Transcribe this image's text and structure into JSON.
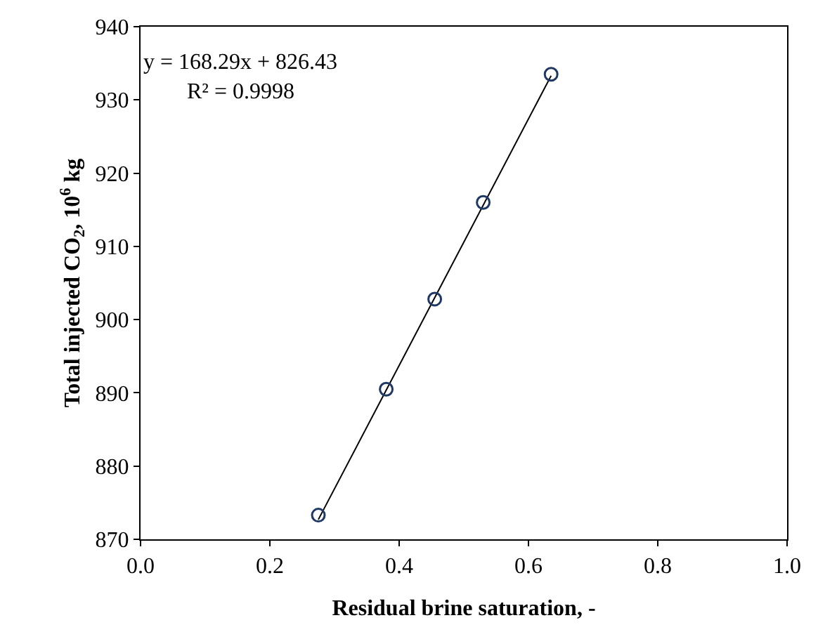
{
  "chart_data": {
    "type": "scatter",
    "xlabel": "Residual brine saturation, -",
    "ylabel": "Total injected CO$_{2}$, 10$^{6}$ kg",
    "xlim": [
      0.0,
      1.0
    ],
    "xticks": [
      {
        "value": 0,
        "label": "0.0"
      },
      0.2,
      0.4,
      0.6,
      0.8,
      {
        "value": 1,
        "label": "1.0"
      }
    ],
    "ylim": [
      870,
      940
    ],
    "yticks": [
      870,
      880,
      890,
      900,
      910,
      920,
      930,
      940
    ],
    "annotations": [
      "y = 168.29x + 826.43",
      "R² = 0.9998"
    ],
    "series": [
      {
        "type": "line",
        "color": "#000000",
        "x": [
          0.275,
          0.635
        ],
        "values": [
          872.7,
          933.3
        ],
        "marker": "none",
        "line_style": "solid"
      },
      {
        "color": "#1f3864",
        "x": [
          0.275,
          0.38,
          0.455,
          0.53,
          0.635
        ],
        "values": [
          873.3,
          890.5,
          902.8,
          916.0,
          933.5
        ],
        "marker": "circle"
      }
    ]
  }
}
